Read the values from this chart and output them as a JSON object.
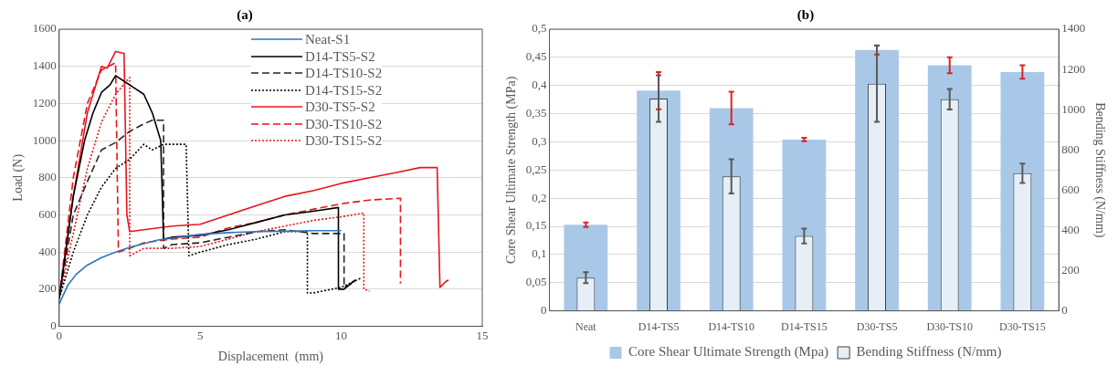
{
  "chart_data": [
    {
      "type": "line",
      "title": "(a)",
      "xlabel": "Displacement  (mm)",
      "ylabel": "Load (N)",
      "xlim": [
        0,
        15
      ],
      "xticks": [
        0,
        5,
        10,
        15
      ],
      "ylim": [
        0,
        1600
      ],
      "yticks": [
        0,
        200,
        400,
        600,
        800,
        1000,
        1200,
        1400,
        1600
      ],
      "grid": "y",
      "legend": "top right",
      "series": [
        {
          "name": "Neat-S1",
          "color": "#2e75b6",
          "line_style": "solid",
          "x": [
            0,
            0.3,
            0.6,
            1,
            1.5,
            2,
            2.5,
            3,
            3.5,
            4,
            5,
            6,
            7,
            8,
            9,
            10
          ],
          "values": [
            120,
            220,
            280,
            330,
            370,
            400,
            425,
            445,
            465,
            475,
            495,
            505,
            510,
            512,
            515,
            515
          ]
        },
        {
          "name": "D14-TS5-S2",
          "color": "#000000",
          "line_style": "solid",
          "x": [
            0,
            0.5,
            0.9,
            1.2,
            1.5,
            1.8,
            2,
            2.3,
            2.6,
            3,
            3.3,
            3.6,
            3.7,
            4,
            5,
            6,
            7,
            8,
            9,
            9.9,
            9.9,
            10.1,
            10.5
          ],
          "values": [
            150,
            700,
            1000,
            1150,
            1260,
            1300,
            1350,
            1320,
            1290,
            1250,
            1150,
            1000,
            470,
            480,
            490,
            520,
            560,
            600,
            620,
            640,
            200,
            200,
            250
          ]
        },
        {
          "name": "D14-TS10-S2",
          "color": "#262626",
          "line_style": "dashed",
          "x": [
            0,
            0.5,
            1,
            1.5,
            2,
            2.5,
            3,
            3.3,
            3.7,
            3.7,
            4,
            5,
            6,
            7,
            8,
            9,
            10.1,
            10.1,
            10.5
          ],
          "values": [
            150,
            600,
            780,
            950,
            990,
            1050,
            1090,
            1110,
            1110,
            420,
            440,
            450,
            480,
            510,
            520,
            500,
            500,
            210,
            240
          ]
        },
        {
          "name": "D14-TS15-S2",
          "color": "#000000",
          "line_style": "dotted",
          "x": [
            0,
            0.5,
            1,
            1.5,
            2,
            2.5,
            3,
            3.3,
            3.7,
            4.5,
            4.6,
            5,
            6,
            7,
            8,
            8.8,
            8.8,
            9,
            10,
            10.7
          ],
          "values": [
            150,
            400,
            600,
            750,
            850,
            900,
            980,
            950,
            980,
            980,
            380,
            400,
            440,
            470,
            510,
            510,
            180,
            180,
            210,
            260
          ]
        },
        {
          "name": "D30-TS5-S2",
          "color": "#e8141c",
          "line_style": "solid",
          "x": [
            0,
            0.5,
            1,
            1.3,
            1.5,
            1.7,
            2,
            2.3,
            2.4,
            2.5,
            3,
            4,
            5,
            6,
            7,
            8,
            9,
            10,
            11,
            12,
            12.8,
            13.4,
            13.5,
            13.7,
            13.8
          ],
          "values": [
            150,
            700,
            1150,
            1300,
            1400,
            1390,
            1480,
            1470,
            600,
            510,
            520,
            540,
            550,
            600,
            650,
            700,
            730,
            770,
            800,
            830,
            855,
            855,
            210,
            240,
            250
          ]
        },
        {
          "name": "D30-TS10-S2",
          "color": "#e8141c",
          "line_style": "dashed",
          "x": [
            0,
            0.5,
            1,
            1.5,
            2,
            2.1,
            2.5,
            3,
            4,
            5,
            6,
            7,
            8,
            9,
            10,
            11,
            12.1,
            12.1
          ],
          "values": [
            150,
            800,
            1200,
            1380,
            1420,
            400,
            420,
            450,
            470,
            480,
            530,
            560,
            600,
            630,
            660,
            680,
            690,
            230
          ]
        },
        {
          "name": "D30-TS15-S2",
          "color": "#e8141c",
          "line_style": "dotted",
          "x": [
            0,
            0.5,
            1,
            1.5,
            2,
            2.5,
            2.5,
            3,
            4,
            5,
            6,
            7,
            8,
            9,
            10,
            10.8,
            10.8,
            11
          ],
          "values": [
            150,
            500,
            850,
            1100,
            1250,
            1340,
            380,
            420,
            420,
            430,
            470,
            510,
            540,
            570,
            590,
            610,
            200,
            190
          ]
        }
      ]
    },
    {
      "type": "bar",
      "title": "(b)",
      "ylabel": "Core Shear Ultimate Strength (MPa)",
      "y2label": "Bending Stiffness (N/mm)",
      "categories": [
        "Neat",
        "D14-TS5",
        "D14-TS10",
        "D14-TS15",
        "D30-TS5",
        "D30-TS10",
        "D30-TS15"
      ],
      "ylim": [
        0,
        0.5
      ],
      "yticks": [
        0,
        {
          "value": 0.05,
          "label": "0,05"
        },
        {
          "value": 0.1,
          "label": "0,1"
        },
        {
          "value": 0.15,
          "label": "0,15"
        },
        {
          "value": 0.2,
          "label": "0,2"
        },
        {
          "value": 0.25,
          "label": "0,25"
        },
        {
          "value": 0.3,
          "label": "0,3"
        },
        {
          "value": 0.35,
          "label": "0,35"
        },
        {
          "value": 0.4,
          "label": "0,4"
        },
        {
          "value": 0.45,
          "label": "0,45"
        },
        {
          "value": 0.5,
          "label": "0,5"
        }
      ],
      "y2lim": [
        0,
        1400
      ],
      "y2ticks": [
        0,
        200,
        400,
        600,
        800,
        1000,
        1200,
        1400
      ],
      "grid": "y",
      "legend": "bottom",
      "series": [
        {
          "name": "Core Shear Ultimate Strength (Mpa)",
          "color": "#a9c8e8",
          "values": [
            0.153,
            0.391,
            0.36,
            0.304,
            0.463,
            0.436,
            0.424
          ],
          "errors": [
            0.004,
            0.033,
            0.029,
            0.003,
            0.008,
            0.014,
            0.012
          ]
        },
        {
          "name": "Bending Stiffness (N/mm)",
          "color": "#e6eef6",
          "axis": "y2",
          "values": [
            165,
            1055,
            668,
            372,
            1129,
            1052,
            684
          ],
          "errors": [
            27,
            116,
            85,
            37,
            190,
            51,
            48
          ]
        }
      ]
    }
  ]
}
